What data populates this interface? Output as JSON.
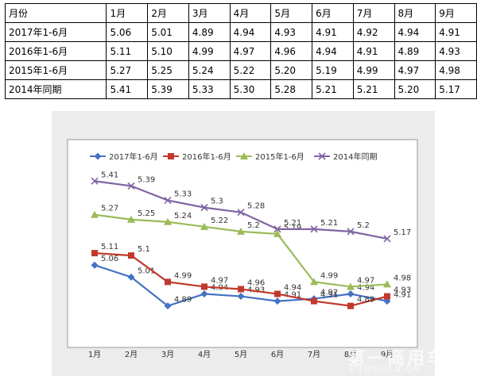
{
  "table": {
    "header_label": "月份",
    "months": [
      "1月",
      "2月",
      "3月",
      "4月",
      "5月",
      "6月",
      "7月",
      "8月",
      "9月"
    ],
    "rows": [
      {
        "label": "2017年1-6月",
        "values": [
          "5.06",
          "5.01",
          "4.89",
          "4.94",
          "4.93",
          "4.91",
          "4.92",
          "4.94",
          "4.91"
        ]
      },
      {
        "label": "2016年1-6月",
        "values": [
          "5.11",
          "5.10",
          "4.99",
          "4.97",
          "4.96",
          "4.94",
          "4.91",
          "4.89",
          "4.93"
        ]
      },
      {
        "label": "2015年1-6月",
        "values": [
          "5.27",
          "5.25",
          "5.24",
          "5.22",
          "5.20",
          "5.19",
          "4.99",
          "4.97",
          "4.98"
        ]
      },
      {
        "label": "2014年同期",
        "values": [
          "5.41",
          "5.39",
          "5.33",
          "5.30",
          "5.28",
          "5.21",
          "5.21",
          "5.20",
          "5.17"
        ]
      }
    ]
  },
  "chart_data": {
    "type": "line",
    "categories": [
      "1月",
      "2月",
      "3月",
      "4月",
      "5月",
      "6月",
      "7月",
      "8月",
      "9月"
    ],
    "series": [
      {
        "name": "2017年1-6月",
        "color": "#4472c4",
        "marker": "diamond",
        "values": [
          5.06,
          5.01,
          4.89,
          4.94,
          4.93,
          4.91,
          4.92,
          4.94,
          4.91
        ],
        "labels": [
          "5.06",
          "5.01",
          "4.89",
          "4.94",
          "4.93",
          "4.91",
          "4.92",
          "4.94",
          "4.91"
        ]
      },
      {
        "name": "2016年1-6月",
        "color": "#c0392b",
        "marker": "square",
        "values": [
          5.11,
          5.1,
          4.99,
          4.97,
          4.96,
          4.94,
          4.91,
          4.89,
          4.93
        ],
        "labels": [
          "5.11",
          "5.1",
          "4.99",
          "4.97",
          "4.96",
          "4.94",
          "4.91",
          "4.89",
          "4.93"
        ]
      },
      {
        "name": "2015年1-6月",
        "color": "#9bbb59",
        "marker": "triangle",
        "values": [
          5.27,
          5.25,
          5.24,
          5.22,
          5.2,
          5.19,
          4.99,
          4.97,
          4.98
        ],
        "labels": [
          "5.27",
          "5.25",
          "5.24",
          "5.22",
          "5.2",
          "5.19",
          "4.99",
          "4.97",
          "4.98"
        ]
      },
      {
        "name": "2014年同期",
        "color": "#8064a2",
        "marker": "x",
        "values": [
          5.41,
          5.39,
          5.33,
          5.3,
          5.28,
          5.21,
          5.21,
          5.2,
          5.17
        ],
        "labels": [
          "5.41",
          "5.39",
          "5.33",
          "5.3",
          "5.28",
          "5.21",
          "5.21",
          "5.2",
          "5.17"
        ]
      }
    ],
    "ylim": [
      4.75,
      5.55
    ],
    "grid": false,
    "legend_position": "top"
  },
  "watermark": {
    "text": "第一商用车网",
    "sub": "CVWORLD.CN"
  }
}
